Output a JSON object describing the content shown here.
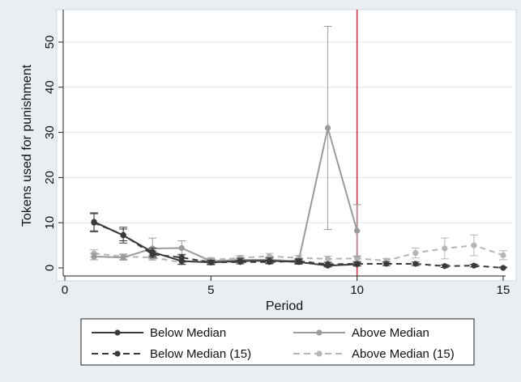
{
  "chart_data": {
    "type": "line",
    "title": "",
    "xlabel": "Period",
    "ylabel": "Tokens used for punishment",
    "xlim": [
      0,
      15
    ],
    "ylim": [
      -2,
      56
    ],
    "xticks": [
      0,
      5,
      10,
      15
    ],
    "yticks": [
      0,
      10,
      20,
      30,
      40,
      50
    ],
    "grid": "horizontal",
    "vline": {
      "x": 10,
      "color": "#c8364c"
    },
    "legend_position": "bottom",
    "series": [
      {
        "name": "Below Median",
        "color": "#3a3a3a",
        "dash": "solid",
        "x": [
          1,
          2,
          3,
          4,
          5,
          6,
          7,
          8,
          9,
          10
        ],
        "y": [
          10.2,
          7.2,
          3.5,
          1.5,
          1.2,
          1.5,
          1.6,
          1.3,
          0.5,
          0.8
        ],
        "err_low": [
          8.2,
          5.5,
          2.6,
          0.8,
          0.7,
          0.9,
          1.0,
          0.8,
          0.2,
          0.4
        ],
        "err_high": [
          12.2,
          9.0,
          4.4,
          2.2,
          1.7,
          2.1,
          2.2,
          1.8,
          0.8,
          1.2
        ]
      },
      {
        "name": "Above Median",
        "color": "#9b9b9b",
        "dash": "solid",
        "x": [
          1,
          2,
          3,
          4,
          5,
          6,
          7,
          8,
          9,
          10
        ],
        "y": [
          2.5,
          2.3,
          4.3,
          4.4,
          1.5,
          1.8,
          1.8,
          1.5,
          31.0,
          8.2
        ],
        "err_low": [
          1.8,
          1.7,
          2.0,
          2.8,
          0.9,
          1.2,
          1.2,
          1.0,
          8.5,
          2.5
        ],
        "err_high": [
          3.2,
          2.9,
          6.6,
          6.0,
          2.1,
          2.4,
          2.4,
          2.0,
          53.5,
          14.0
        ]
      },
      {
        "name": "Below Median (15)",
        "color": "#3a3a3a",
        "dash": "dashed",
        "x": [
          1,
          2,
          3,
          4,
          5,
          6,
          7,
          8,
          9,
          10,
          11,
          12,
          13,
          14,
          15
        ],
        "y": [
          10.0,
          7.3,
          3.0,
          2.3,
          1.2,
          1.3,
          1.3,
          1.5,
          0.8,
          0.9,
          0.9,
          0.9,
          0.4,
          0.5,
          0.0
        ],
        "err_low": [
          8.0,
          6.0,
          2.3,
          1.6,
          0.8,
          0.9,
          0.9,
          1.0,
          0.4,
          0.5,
          0.5,
          0.5,
          0.1,
          0.2,
          0.0
        ],
        "err_high": [
          12.0,
          8.6,
          3.7,
          3.0,
          1.6,
          1.7,
          1.7,
          2.0,
          1.2,
          1.3,
          1.3,
          1.3,
          0.7,
          0.8,
          0.2
        ]
      },
      {
        "name": "Above Median (15)",
        "color": "#b5b5b5",
        "dash": "dashed",
        "x": [
          1,
          2,
          3,
          4,
          5,
          6,
          7,
          8,
          9,
          10,
          11,
          12,
          13,
          14,
          15
        ],
        "y": [
          3.2,
          2.5,
          2.3,
          1.2,
          1.8,
          2.2,
          2.6,
          2.2,
          2.0,
          2.1,
          1.6,
          3.3,
          4.3,
          5.0,
          2.8
        ],
        "err_low": [
          2.4,
          1.9,
          1.7,
          0.7,
          1.3,
          1.6,
          2.0,
          1.6,
          1.4,
          1.5,
          1.1,
          2.2,
          2.0,
          2.7,
          1.8
        ],
        "err_high": [
          4.0,
          3.1,
          2.9,
          1.7,
          2.3,
          2.8,
          3.2,
          2.8,
          2.6,
          2.7,
          2.1,
          4.4,
          6.6,
          7.3,
          3.8
        ]
      }
    ]
  }
}
